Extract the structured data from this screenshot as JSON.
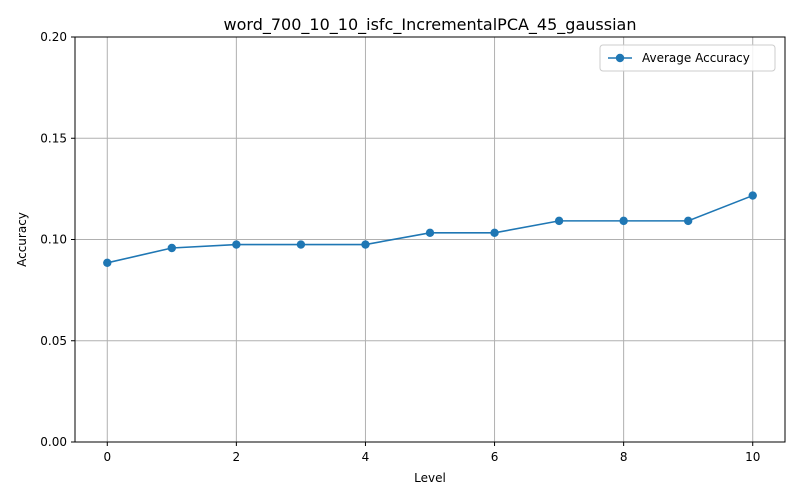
{
  "chart_data": {
    "type": "line",
    "title": "word_700_10_10_isfc_IncrementalPCA_45_gaussian",
    "xlabel": "Level",
    "ylabel": "Accuracy",
    "xlim": [
      -0.5,
      10.5
    ],
    "ylim": [
      0.0,
      0.2
    ],
    "xticks": [
      0,
      2,
      4,
      6,
      8,
      10
    ],
    "xtick_labels": [
      "0",
      "2",
      "4",
      "6",
      "8",
      "10"
    ],
    "yticks": [
      0.0,
      0.05,
      0.1,
      0.15,
      0.2
    ],
    "ytick_labels": [
      "0.00",
      "0.05",
      "0.10",
      "0.15",
      "0.20"
    ],
    "grid": true,
    "legend_position": "top-right",
    "series": [
      {
        "name": "Average Accuracy",
        "color": "#1f77b4",
        "marker": "circle",
        "x": [
          0,
          1,
          2,
          3,
          4,
          5,
          6,
          7,
          8,
          9,
          10
        ],
        "y": [
          0.0885,
          0.0958,
          0.0975,
          0.0975,
          0.0975,
          0.1033,
          0.1033,
          0.1092,
          0.1092,
          0.1092,
          0.1217
        ]
      }
    ]
  }
}
